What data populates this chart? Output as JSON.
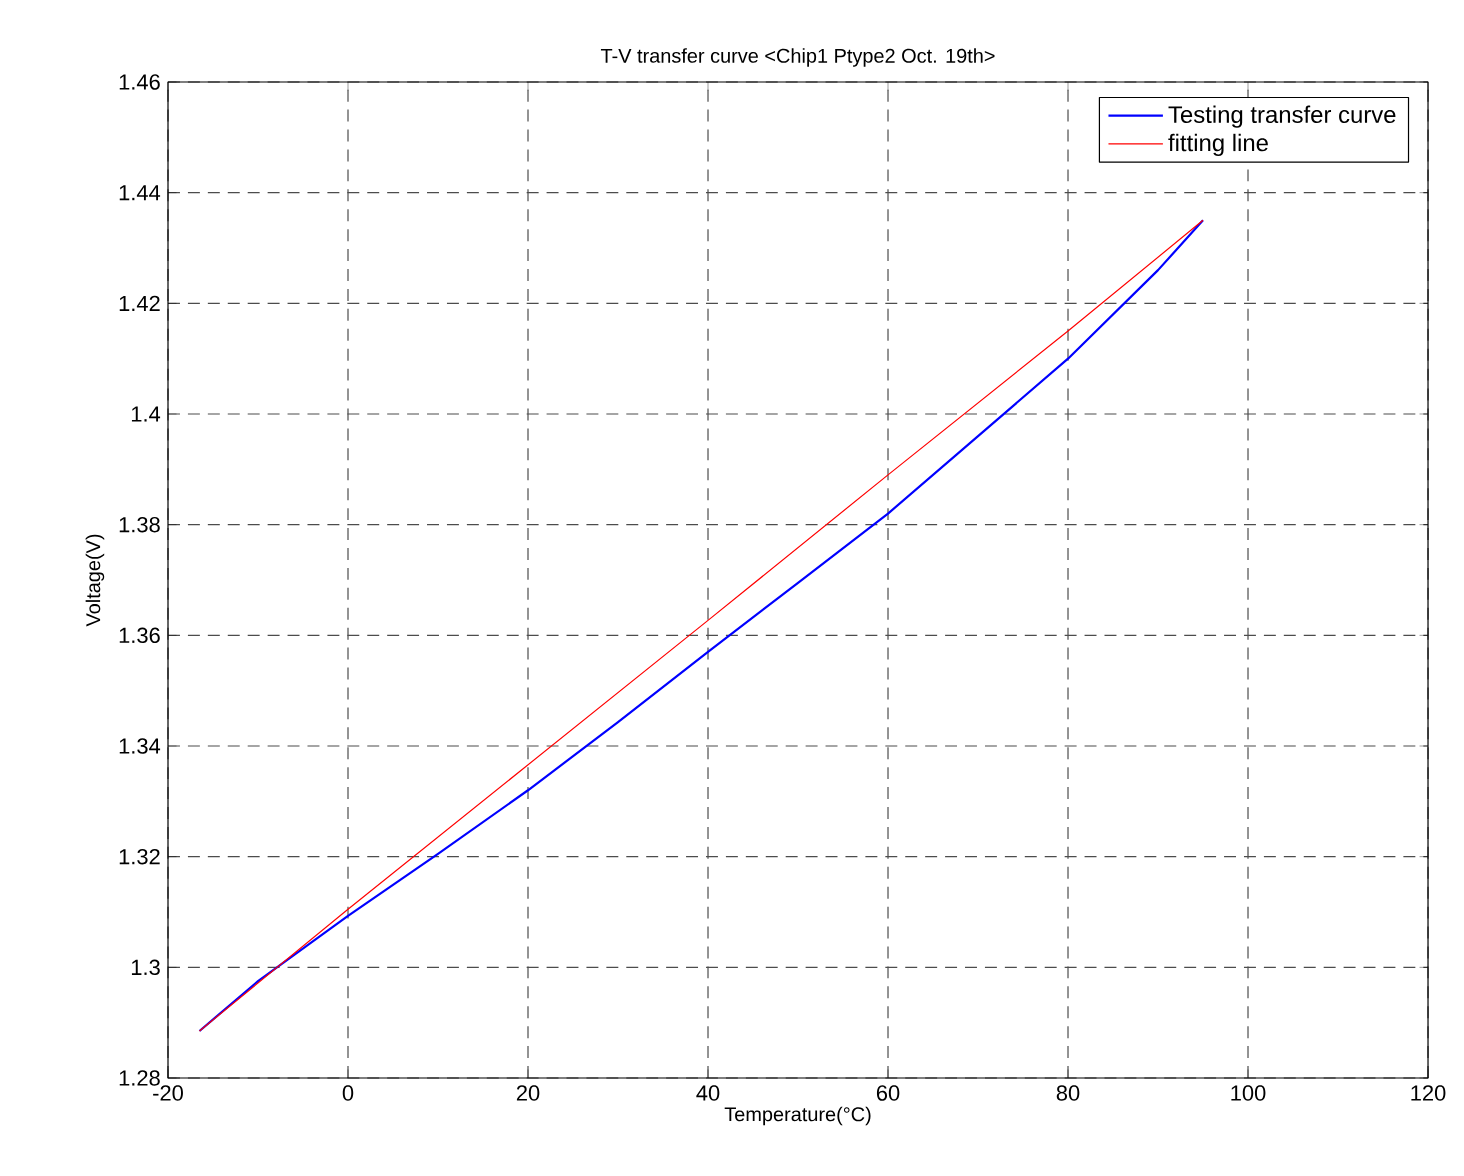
{
  "chart_data": {
    "type": "line",
    "title": "T-V transfer curve <Chip1 Ptype2 Oct. 19th>",
    "xlabel": "Temperature(°C)",
    "ylabel": "Voltage(V)",
    "xlim": [
      -20,
      120
    ],
    "ylim": [
      1.28,
      1.46
    ],
    "xticks": [
      -20,
      0,
      20,
      40,
      60,
      80,
      100,
      120
    ],
    "yticks": [
      1.28,
      1.3,
      1.32,
      1.34,
      1.36,
      1.38,
      1.4,
      1.42,
      1.44,
      1.46
    ],
    "grid": true,
    "legend": "top right",
    "line_style": "solid",
    "marker": "none",
    "series": [
      {
        "name": "Testing transfer curve",
        "color": "#0000ff",
        "x": [
          -16.5,
          -10,
          0,
          10,
          20,
          30,
          40,
          50,
          60,
          70,
          80,
          90,
          95
        ],
        "values": [
          1.2885,
          1.2975,
          1.3093,
          1.3205,
          1.332,
          1.3443,
          1.357,
          1.3695,
          1.382,
          1.396,
          1.41,
          1.426,
          1.435
        ]
      },
      {
        "name": "fitting line",
        "color": "#ff0000",
        "x": [
          -16.5,
          0,
          40,
          60,
          80,
          95
        ],
        "values": [
          1.2885,
          1.3105,
          1.3627,
          1.389,
          1.415,
          1.435
        ]
      }
    ]
  }
}
